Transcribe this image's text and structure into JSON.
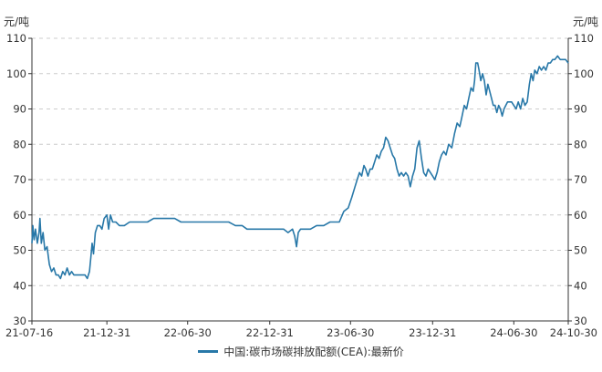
{
  "chart_data": {
    "type": "line",
    "y_unit_left": "元/吨",
    "y_unit_right": "元/吨",
    "ylim": [
      30,
      110
    ],
    "y_ticks": [
      30,
      40,
      50,
      60,
      70,
      80,
      90,
      100,
      110
    ],
    "x_start": "2021-07-16",
    "x_end": "2024-10-30",
    "x_tick_labels": [
      "21-07-16",
      "21-12-31",
      "22-06-30",
      "22-12-31",
      "23-06-30",
      "23-12-31",
      "24-06-30",
      "24-10-30"
    ],
    "x_tick_dates": [
      "2021-07-16",
      "2021-12-31",
      "2022-06-30",
      "2022-12-31",
      "2023-06-30",
      "2023-12-31",
      "2024-06-30",
      "2024-10-30"
    ],
    "grid": "horizontal-dashed",
    "legend_position": "bottom",
    "colors": {
      "line": "#2878a8",
      "axis": "#333333",
      "grid": "#cccccc"
    },
    "series": [
      {
        "name": "中国:碳市场碳排放配额(CEA):最新价",
        "points": [
          [
            "2021-07-16",
            52
          ],
          [
            "2021-07-18",
            57
          ],
          [
            "2021-07-21",
            53
          ],
          [
            "2021-07-24",
            56
          ],
          [
            "2021-07-28",
            52
          ],
          [
            "2021-08-01",
            55
          ],
          [
            "2021-08-03",
            59
          ],
          [
            "2021-08-06",
            52
          ],
          [
            "2021-08-10",
            55
          ],
          [
            "2021-08-14",
            50
          ],
          [
            "2021-08-19",
            51
          ],
          [
            "2021-08-24",
            46
          ],
          [
            "2021-08-29",
            44
          ],
          [
            "2021-09-03",
            45
          ],
          [
            "2021-09-08",
            43
          ],
          [
            "2021-09-13",
            43
          ],
          [
            "2021-09-18",
            42
          ],
          [
            "2021-09-23",
            44
          ],
          [
            "2021-09-28",
            43
          ],
          [
            "2021-10-03",
            45
          ],
          [
            "2021-10-08",
            43
          ],
          [
            "2021-10-13",
            44
          ],
          [
            "2021-10-18",
            43
          ],
          [
            "2021-10-23",
            43
          ],
          [
            "2021-10-28",
            43
          ],
          [
            "2021-11-02",
            43
          ],
          [
            "2021-11-07",
            43
          ],
          [
            "2021-11-12",
            43
          ],
          [
            "2021-11-17",
            42
          ],
          [
            "2021-11-22",
            44
          ],
          [
            "2021-11-25",
            48
          ],
          [
            "2021-11-28",
            52
          ],
          [
            "2021-12-01",
            49
          ],
          [
            "2021-12-05",
            55
          ],
          [
            "2021-12-10",
            57
          ],
          [
            "2021-12-15",
            57
          ],
          [
            "2021-12-20",
            56
          ],
          [
            "2021-12-25",
            59
          ],
          [
            "2021-12-31",
            60
          ],
          [
            "2022-01-04",
            56
          ],
          [
            "2022-01-08",
            60
          ],
          [
            "2022-01-13",
            58
          ],
          [
            "2022-01-20",
            58
          ],
          [
            "2022-01-28",
            57
          ],
          [
            "2022-02-08",
            57
          ],
          [
            "2022-02-20",
            58
          ],
          [
            "2022-03-01",
            58
          ],
          [
            "2022-03-15",
            58
          ],
          [
            "2022-04-01",
            58
          ],
          [
            "2022-04-15",
            59
          ],
          [
            "2022-05-01",
            59
          ],
          [
            "2022-05-20",
            59
          ],
          [
            "2022-06-01",
            59
          ],
          [
            "2022-06-15",
            58
          ],
          [
            "2022-06-30",
            58
          ],
          [
            "2022-07-15",
            58
          ],
          [
            "2022-08-01",
            58
          ],
          [
            "2022-08-20",
            58
          ],
          [
            "2022-09-10",
            58
          ],
          [
            "2022-09-30",
            58
          ],
          [
            "2022-10-15",
            57
          ],
          [
            "2022-10-30",
            57
          ],
          [
            "2022-11-10",
            56
          ],
          [
            "2022-11-25",
            56
          ],
          [
            "2022-12-10",
            56
          ],
          [
            "2022-12-31",
            56
          ],
          [
            "2023-01-15",
            56
          ],
          [
            "2023-01-31",
            56
          ],
          [
            "2023-02-10",
            55
          ],
          [
            "2023-02-20",
            56
          ],
          [
            "2023-02-25",
            54
          ],
          [
            "2023-03-01",
            51
          ],
          [
            "2023-03-05",
            55
          ],
          [
            "2023-03-10",
            56
          ],
          [
            "2023-03-20",
            56
          ],
          [
            "2023-04-01",
            56
          ],
          [
            "2023-04-15",
            57
          ],
          [
            "2023-05-01",
            57
          ],
          [
            "2023-05-15",
            58
          ],
          [
            "2023-05-25",
            58
          ],
          [
            "2023-06-05",
            58
          ],
          [
            "2023-06-15",
            61
          ],
          [
            "2023-06-25",
            62
          ],
          [
            "2023-07-03",
            65
          ],
          [
            "2023-07-10",
            68
          ],
          [
            "2023-07-15",
            70
          ],
          [
            "2023-07-20",
            72
          ],
          [
            "2023-07-25",
            71
          ],
          [
            "2023-07-30",
            74
          ],
          [
            "2023-08-03",
            73
          ],
          [
            "2023-08-08",
            71
          ],
          [
            "2023-08-13",
            73
          ],
          [
            "2023-08-18",
            73
          ],
          [
            "2023-08-23",
            75
          ],
          [
            "2023-08-28",
            77
          ],
          [
            "2023-09-02",
            76
          ],
          [
            "2023-09-07",
            78
          ],
          [
            "2023-09-12",
            79
          ],
          [
            "2023-09-17",
            82
          ],
          [
            "2023-09-22",
            81
          ],
          [
            "2023-09-27",
            79
          ],
          [
            "2023-10-02",
            77
          ],
          [
            "2023-10-07",
            76
          ],
          [
            "2023-10-12",
            73
          ],
          [
            "2023-10-17",
            71
          ],
          [
            "2023-10-22",
            72
          ],
          [
            "2023-10-27",
            71
          ],
          [
            "2023-11-01",
            72
          ],
          [
            "2023-11-06",
            71
          ],
          [
            "2023-11-11",
            68
          ],
          [
            "2023-11-16",
            71
          ],
          [
            "2023-11-21",
            73
          ],
          [
            "2023-11-26",
            79
          ],
          [
            "2023-12-01",
            81
          ],
          [
            "2023-12-06",
            76
          ],
          [
            "2023-12-11",
            72
          ],
          [
            "2023-12-16",
            71
          ],
          [
            "2023-12-21",
            73
          ],
          [
            "2023-12-31",
            71
          ],
          [
            "2024-01-05",
            70
          ],
          [
            "2024-01-10",
            72
          ],
          [
            "2024-01-15",
            75
          ],
          [
            "2024-01-20",
            77
          ],
          [
            "2024-01-25",
            78
          ],
          [
            "2024-01-30",
            77
          ],
          [
            "2024-02-05",
            80
          ],
          [
            "2024-02-12",
            79
          ],
          [
            "2024-02-18",
            83
          ],
          [
            "2024-02-24",
            86
          ],
          [
            "2024-03-01",
            85
          ],
          [
            "2024-03-06",
            88
          ],
          [
            "2024-03-11",
            91
          ],
          [
            "2024-03-16",
            90
          ],
          [
            "2024-03-21",
            93
          ],
          [
            "2024-03-26",
            96
          ],
          [
            "2024-03-31",
            95
          ],
          [
            "2024-04-03",
            98
          ],
          [
            "2024-04-06",
            103
          ],
          [
            "2024-04-10",
            103
          ],
          [
            "2024-04-13",
            101
          ],
          [
            "2024-04-17",
            98
          ],
          [
            "2024-04-21",
            100
          ],
          [
            "2024-04-25",
            98
          ],
          [
            "2024-04-29",
            94
          ],
          [
            "2024-05-03",
            97
          ],
          [
            "2024-05-07",
            95
          ],
          [
            "2024-05-11",
            93
          ],
          [
            "2024-05-15",
            91
          ],
          [
            "2024-05-19",
            91
          ],
          [
            "2024-05-23",
            89
          ],
          [
            "2024-05-27",
            91
          ],
          [
            "2024-05-31",
            90
          ],
          [
            "2024-06-04",
            88
          ],
          [
            "2024-06-08",
            90
          ],
          [
            "2024-06-12",
            91
          ],
          [
            "2024-06-16",
            92
          ],
          [
            "2024-06-20",
            92
          ],
          [
            "2024-06-25",
            92
          ],
          [
            "2024-06-30",
            91
          ],
          [
            "2024-07-05",
            90
          ],
          [
            "2024-07-10",
            92
          ],
          [
            "2024-07-15",
            90
          ],
          [
            "2024-07-20",
            93
          ],
          [
            "2024-07-25",
            91
          ],
          [
            "2024-07-30",
            92
          ],
          [
            "2024-08-04",
            97
          ],
          [
            "2024-08-08",
            100
          ],
          [
            "2024-08-12",
            98
          ],
          [
            "2024-08-16",
            101
          ],
          [
            "2024-08-21",
            100
          ],
          [
            "2024-08-26",
            102
          ],
          [
            "2024-08-31",
            101
          ],
          [
            "2024-09-05",
            102
          ],
          [
            "2024-09-10",
            101
          ],
          [
            "2024-09-15",
            103
          ],
          [
            "2024-09-20",
            103
          ],
          [
            "2024-09-25",
            104
          ],
          [
            "2024-09-30",
            104
          ],
          [
            "2024-10-06",
            105
          ],
          [
            "2024-10-12",
            104
          ],
          [
            "2024-10-18",
            104
          ],
          [
            "2024-10-24",
            104
          ],
          [
            "2024-10-30",
            103
          ]
        ]
      }
    ]
  }
}
